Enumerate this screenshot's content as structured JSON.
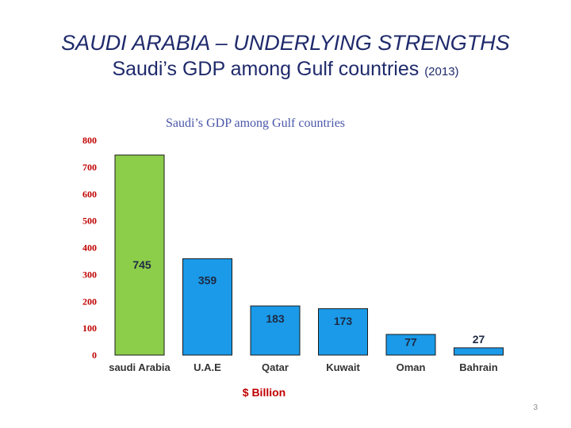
{
  "slide": {
    "title_line1": "SAUDI ARABIA – UNDERLYING STRENGTHS",
    "title_line2": "Saudi’s GDP among Gulf countries",
    "title_line2_suffix": "(2013)",
    "page_number": "3"
  },
  "colors": {
    "title": "#1f2a6b",
    "axis_ticks": "#c00000",
    "chart_title": "#4a57a8",
    "highlight_bar": "#8ccd4a",
    "other_bars": "#1a9ae8",
    "xlabel": "#c00000"
  },
  "chart_data": {
    "type": "bar",
    "title": "Saudi’s GDP among Gulf countries",
    "xlabel": "$ Billion",
    "ylabel": "",
    "categories": [
      "saudi Arabia",
      "U.A.E",
      "Qatar",
      "Kuwait",
      "Oman",
      "Bahrain"
    ],
    "values": [
      745,
      359,
      183,
      173,
      77,
      27
    ],
    "ylim": [
      0,
      800
    ],
    "yticks": [
      0,
      100,
      200,
      300,
      400,
      500,
      600,
      700,
      800
    ],
    "grid": false,
    "legend": "none"
  }
}
